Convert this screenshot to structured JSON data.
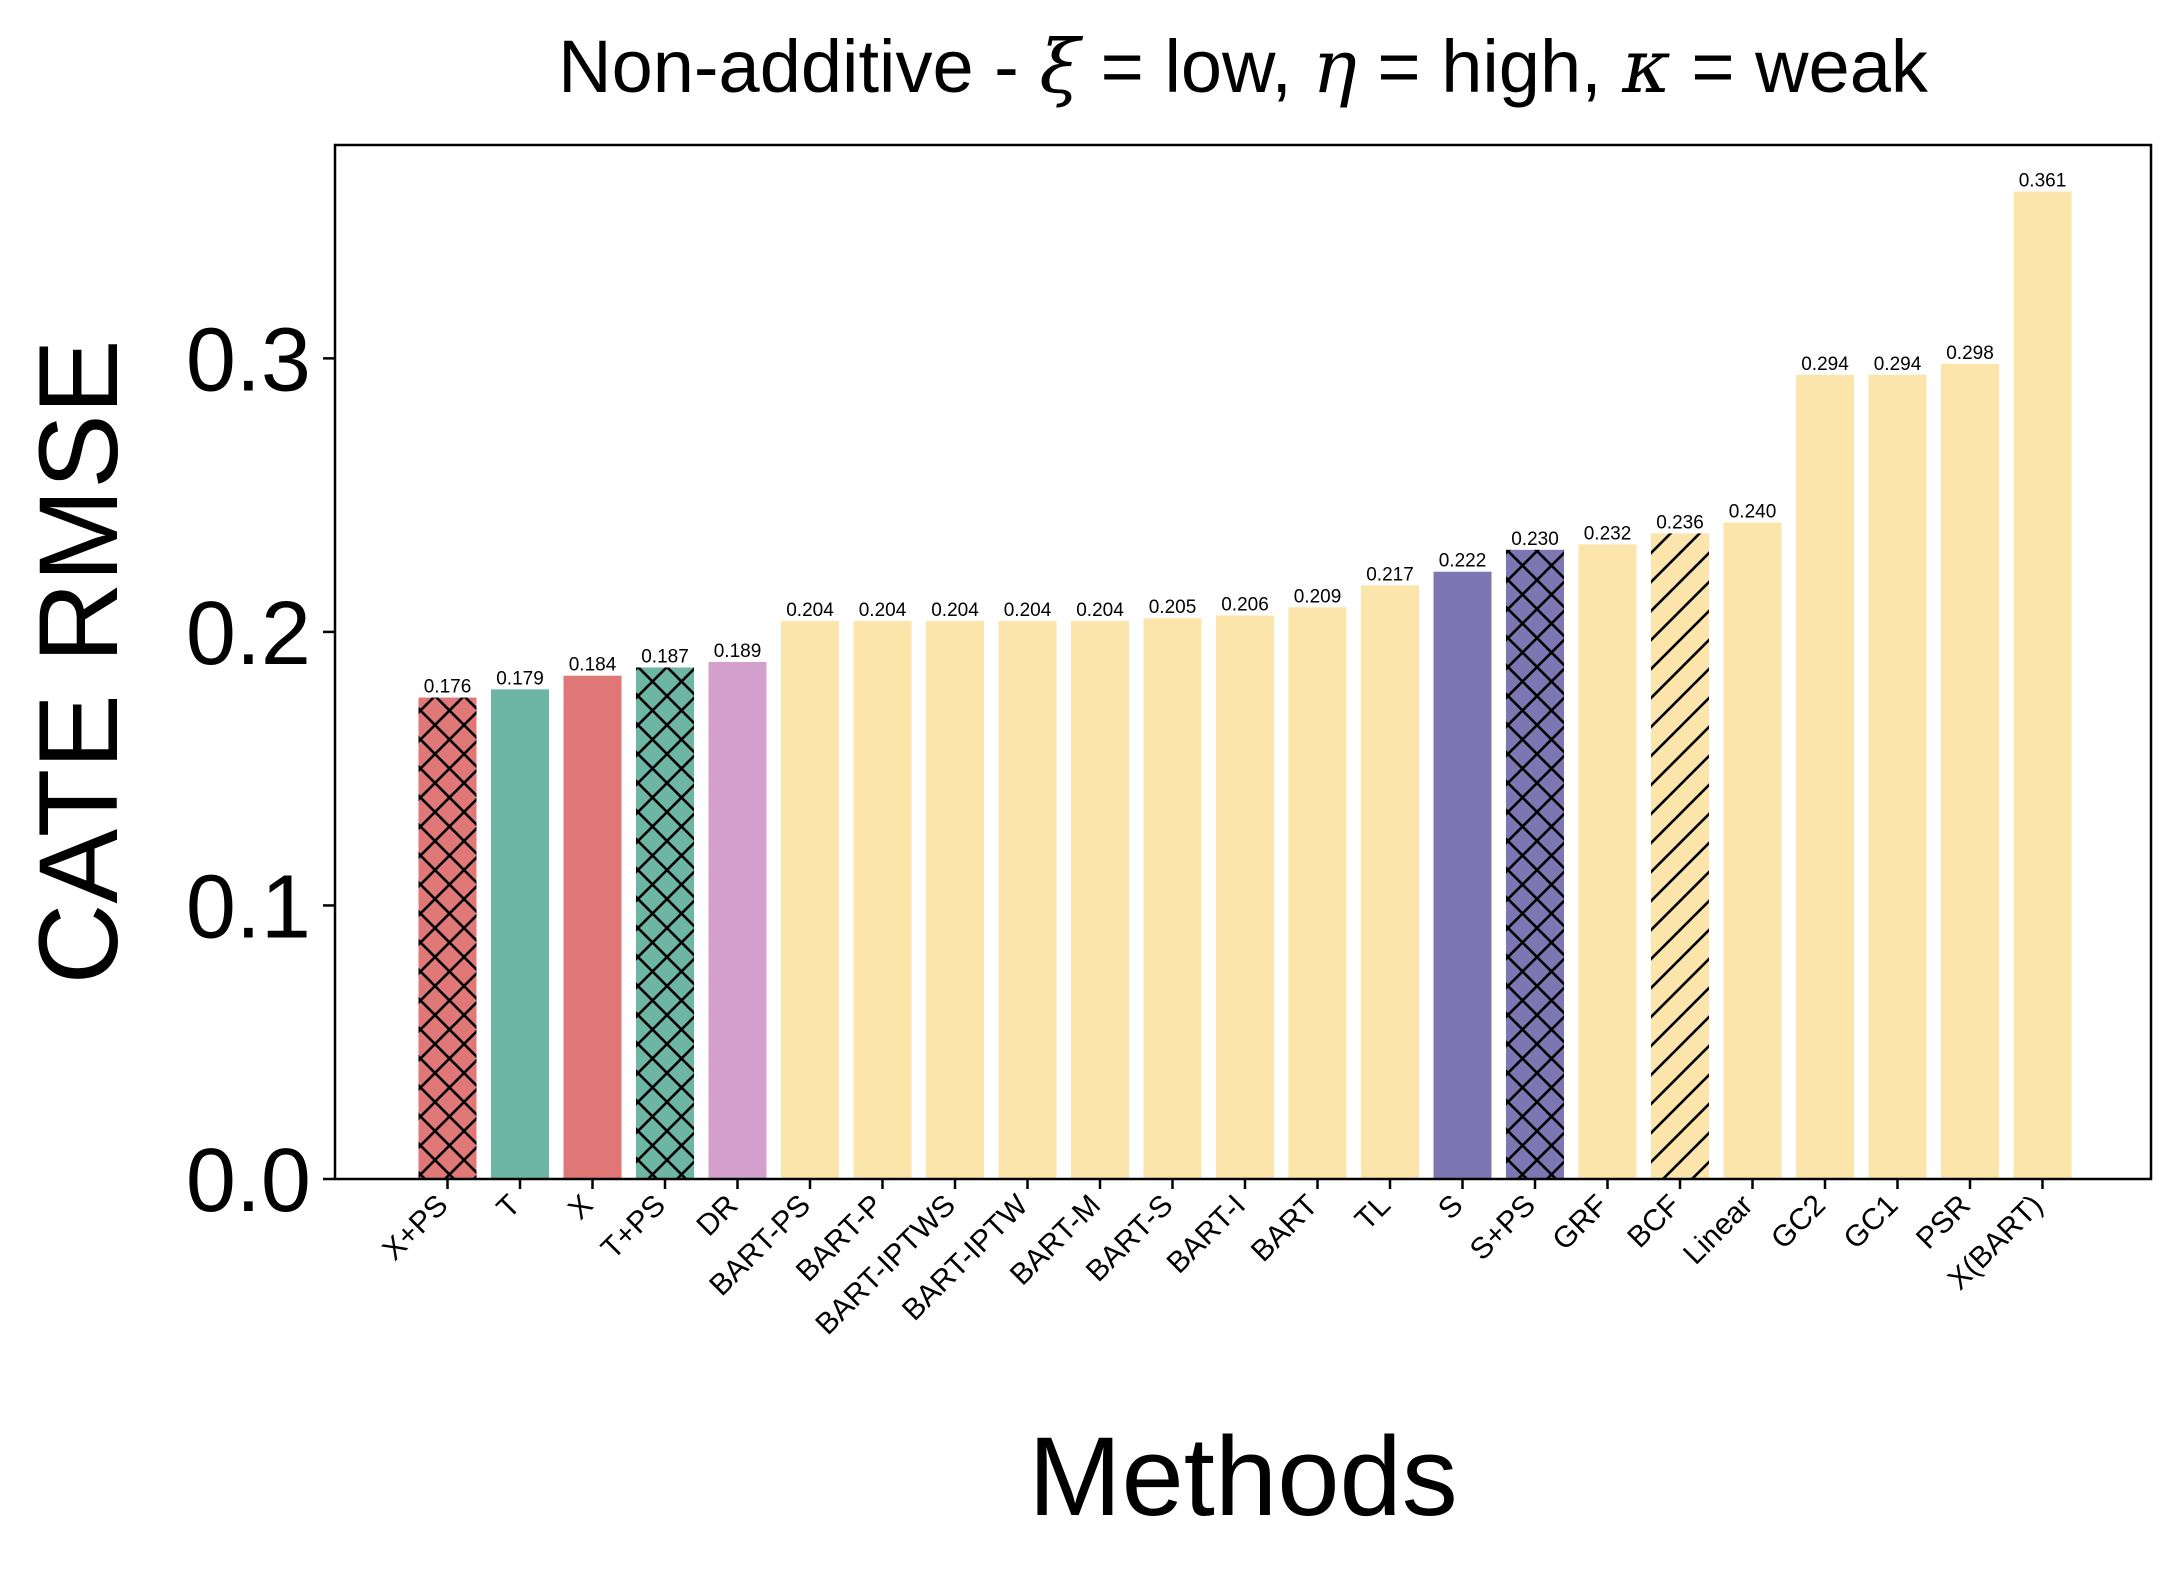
{
  "chart_data": {
    "type": "bar",
    "title": {
      "prefix": "Non-additive - ",
      "xi_symbol": "ξ",
      "xi_value": " = low, ",
      "eta_symbol": "η",
      "eta_value": " = high, ",
      "kappa_symbol": "κ",
      "kappa_value": " = weak"
    },
    "xlabel": "Methods",
    "ylabel": "CATE RMSE",
    "ylim": [
      0,
      0.378
    ],
    "yticks": [
      0.0,
      0.1,
      0.2,
      0.3
    ],
    "ytick_labels": [
      "0.0",
      "0.1",
      "0.2",
      "0.3"
    ],
    "grid": false,
    "legend": "none",
    "categories": [
      "X+PS",
      "T",
      "X",
      "T+PS",
      "DR",
      "BART-PS",
      "BART-P",
      "BART-IPTWS",
      "BART-IPTW",
      "BART-M",
      "BART-S",
      "BART-I",
      "BART",
      "TL",
      "S",
      "S+PS",
      "GRF",
      "BCF",
      "Linear",
      "GC2",
      "GC1",
      "PSR",
      "X(BART)"
    ],
    "values": [
      0.176,
      0.179,
      0.184,
      0.187,
      0.189,
      0.204,
      0.204,
      0.204,
      0.204,
      0.204,
      0.205,
      0.206,
      0.209,
      0.217,
      0.222,
      0.23,
      0.232,
      0.236,
      0.24,
      0.294,
      0.294,
      0.298,
      0.361
    ],
    "value_labels": [
      "0.176",
      "0.179",
      "0.184",
      "0.187",
      "0.189",
      "0.204",
      "0.204",
      "0.204",
      "0.204",
      "0.204",
      "0.205",
      "0.206",
      "0.209",
      "0.217",
      "0.222",
      "0.230",
      "0.232",
      "0.236",
      "0.240",
      "0.294",
      "0.294",
      "0.298",
      "0.361"
    ],
    "colors": [
      "#df7877",
      "#6db6a3",
      "#df7877",
      "#6db6a3",
      "#d3a0cd",
      "#fbe5aa",
      "#fbe5aa",
      "#fbe5aa",
      "#fbe5aa",
      "#fbe5aa",
      "#fbe5aa",
      "#fbe5aa",
      "#fbe5aa",
      "#fbe5aa",
      "#7c76b2",
      "#7c76b2",
      "#fbe5aa",
      "#fbe5aa",
      "#fbe5aa",
      "#fbe5aa",
      "#fbe5aa",
      "#fbe5aa",
      "#fbe5aa"
    ],
    "hatches": [
      "x",
      "",
      "",
      "x",
      "",
      "",
      "",
      "",
      "",
      "",
      "",
      "",
      "",
      "",
      "",
      "x",
      "",
      "/",
      "",
      "",
      "",
      "",
      ""
    ]
  }
}
